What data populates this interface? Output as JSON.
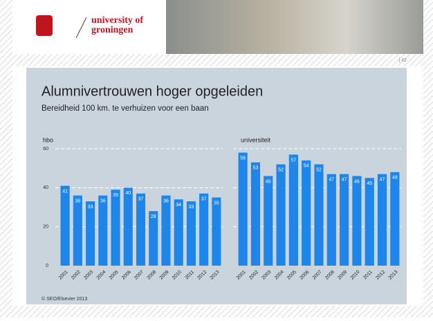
{
  "header": {
    "logo_line1": "university of",
    "logo_line2": "groningen",
    "page_number": "| 42"
  },
  "title": "Alumnivertrouwen hoger opgeleiden",
  "subtitle": "Bereidheid 100 km. te verhuizen voor een baan",
  "footer": "© SEO/Elsevier 2013",
  "chart_data": [
    {
      "type": "bar",
      "title": "hbo",
      "color": "#1e86ea",
      "grid": true,
      "categories": [
        "2001",
        "2002",
        "2003",
        "2004",
        "2005",
        "2006",
        "2007",
        "2008",
        "2009",
        "2010",
        "2011",
        "2012",
        "2013"
      ],
      "values": [
        41,
        36,
        33,
        36,
        39,
        40,
        37,
        28,
        36,
        34,
        33,
        37,
        35
      ],
      "ylim": [
        0,
        60
      ],
      "yticks": [
        0,
        20,
        40,
        60
      ]
    },
    {
      "type": "bar",
      "title": "universiteit",
      "color": "#1e86ea",
      "grid": true,
      "categories": [
        "2001",
        "2002",
        "2003",
        "2004",
        "2005",
        "2006",
        "2007",
        "2008",
        "2009",
        "2010",
        "2011",
        "2012",
        "2013"
      ],
      "values": [
        58,
        53,
        46,
        52,
        57,
        54,
        52,
        47,
        47,
        46,
        45,
        47,
        48
      ],
      "ylim": [
        0,
        60
      ]
    }
  ]
}
